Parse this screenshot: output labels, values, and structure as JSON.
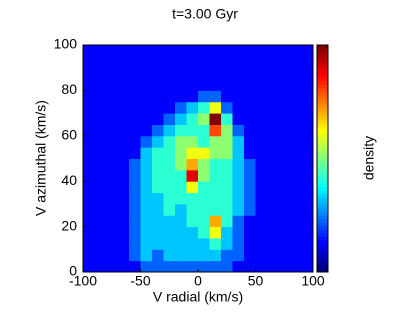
{
  "chart_data": {
    "type": "heatmap",
    "title": "t=3.00 Gyr",
    "x_label": "V radial (km/s)",
    "y_label": "V azimuthal (km/s)",
    "colorbar_label": "density",
    "colormap": "jet",
    "xlim": [
      -100,
      100
    ],
    "ylim": [
      0,
      100
    ],
    "xticks": [
      -100,
      -50,
      0,
      50,
      100
    ],
    "yticks": [
      0,
      20,
      40,
      60,
      80,
      100
    ],
    "z": [
      [
        0,
        0,
        0,
        0,
        0,
        1,
        1,
        1,
        1,
        1,
        1,
        1,
        1,
        0,
        0,
        0,
        0,
        0,
        0,
        0
      ],
      [
        0,
        0,
        0,
        0,
        1,
        2,
        1,
        2,
        2,
        2,
        2,
        2,
        1,
        1,
        0,
        0,
        0,
        0,
        0,
        0
      ],
      [
        0,
        0,
        0,
        0,
        1,
        2,
        2,
        2,
        2,
        2,
        2,
        3,
        2,
        1,
        0,
        0,
        0,
        0,
        0,
        0
      ],
      [
        0,
        0,
        0,
        0,
        1,
        2,
        2,
        2,
        2,
        2,
        3,
        5,
        2,
        1,
        0,
        0,
        0,
        0,
        0,
        0
      ],
      [
        0,
        0,
        0,
        0,
        1,
        2,
        2,
        2,
        2,
        3,
        3,
        6,
        3,
        1,
        0,
        0,
        0,
        0,
        0,
        0
      ],
      [
        0,
        0,
        0,
        0,
        1,
        2,
        2,
        3,
        2,
        3,
        3,
        3,
        3,
        2,
        1,
        0,
        0,
        0,
        0,
        0
      ],
      [
        0,
        0,
        0,
        0,
        1,
        2,
        2,
        3,
        3,
        3,
        3,
        3,
        3,
        2,
        1,
        0,
        0,
        0,
        0,
        0
      ],
      [
        0,
        0,
        0,
        0,
        1,
        2,
        3,
        3,
        3,
        5,
        3,
        3,
        3,
        2,
        1,
        0,
        0,
        0,
        0,
        0
      ],
      [
        0,
        0,
        0,
        0,
        1,
        2,
        3,
        3,
        3,
        8,
        4,
        3,
        3,
        2,
        1,
        0,
        0,
        0,
        0,
        0
      ],
      [
        0,
        0,
        0,
        0,
        1,
        2,
        3,
        3,
        4,
        6,
        4,
        3,
        3,
        2,
        1,
        0,
        0,
        0,
        0,
        0
      ],
      [
        0,
        0,
        0,
        0,
        0,
        2,
        3,
        3,
        4,
        5,
        5,
        4,
        4,
        2,
        0,
        0,
        0,
        0,
        0,
        0
      ],
      [
        0,
        0,
        0,
        0,
        0,
        1,
        2,
        3,
        4,
        4,
        3,
        4,
        4,
        2,
        0,
        0,
        0,
        0,
        0,
        0
      ],
      [
        0,
        0,
        0,
        0,
        0,
        0,
        1,
        2,
        3,
        3,
        3,
        7,
        4,
        1,
        0,
        0,
        0,
        0,
        0,
        0
      ],
      [
        0,
        0,
        0,
        0,
        0,
        0,
        0,
        1,
        2,
        3,
        4,
        9,
        3,
        0,
        0,
        0,
        0,
        0,
        0,
        0
      ],
      [
        0,
        0,
        0,
        0,
        0,
        0,
        0,
        0,
        1,
        2,
        3,
        5,
        1,
        0,
        0,
        0,
        0,
        0,
        0,
        0
      ],
      [
        0,
        0,
        0,
        0,
        0,
        0,
        0,
        0,
        0,
        0,
        1,
        1,
        0,
        0,
        0,
        0,
        0,
        0,
        0,
        0
      ],
      [
        0,
        0,
        0,
        0,
        0,
        0,
        0,
        0,
        0,
        0,
        0,
        0,
        0,
        0,
        0,
        0,
        0,
        0,
        0,
        0
      ],
      [
        0,
        0,
        0,
        0,
        0,
        0,
        0,
        0,
        0,
        0,
        0,
        0,
        0,
        0,
        0,
        0,
        0,
        0,
        0,
        0
      ],
      [
        0,
        0,
        0,
        0,
        0,
        0,
        0,
        0,
        0,
        0,
        0,
        0,
        0,
        0,
        0,
        0,
        0,
        0,
        0,
        0
      ],
      [
        0,
        0,
        0,
        0,
        0,
        0,
        0,
        0,
        0,
        0,
        0,
        0,
        0,
        0,
        0,
        0,
        0,
        0,
        0,
        0
      ]
    ]
  }
}
